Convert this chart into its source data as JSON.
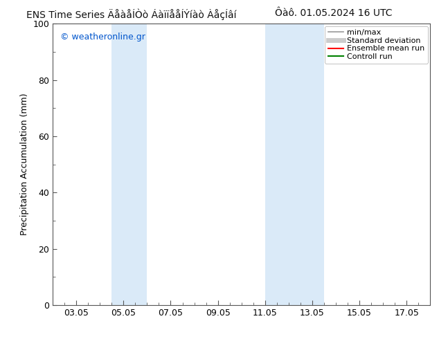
{
  "title_left": "ENS Time Series ÄåàåÍÒò ÁàïïååÍÝíàò ÀåçÍâí",
  "title_right": "Ôàô. 01.05.2024 16 UTC",
  "ylabel": "Precipitation Accumulation (mm)",
  "ylim": [
    0,
    100
  ],
  "yticks": [
    0,
    20,
    40,
    60,
    80,
    100
  ],
  "xtick_dates": [
    "03.05",
    "05.05",
    "07.05",
    "09.05",
    "11.05",
    "13.05",
    "15.05",
    "17.05"
  ],
  "xtick_days": [
    3,
    5,
    7,
    9,
    11,
    13,
    15,
    17
  ],
  "xstart_day": 2,
  "xend_day": 18,
  "watermark": "© weatheronline.gr",
  "watermark_color": "#0055cc",
  "bg_color": "#ffffff",
  "plot_bg_color": "#ffffff",
  "shaded_bands": [
    {
      "xstart_day": 4.5,
      "xend_day": 6.0,
      "color": "#daeaf8"
    },
    {
      "xstart_day": 11.0,
      "xend_day": 13.5,
      "color": "#daeaf8"
    }
  ],
  "legend_entries": [
    {
      "label": "min/max",
      "color": "#999999",
      "lw": 1.2,
      "style": "solid"
    },
    {
      "label": "Standard deviation",
      "color": "#cccccc",
      "lw": 5,
      "style": "solid"
    },
    {
      "label": "Ensemble mean run",
      "color": "#ff0000",
      "lw": 1.5,
      "style": "solid"
    },
    {
      "label": "Controll run",
      "color": "#008000",
      "lw": 1.5,
      "style": "solid"
    }
  ],
  "border_color": "#555555",
  "tick_color": "#555555",
  "font_size": 9,
  "title_font_size": 10,
  "legend_font_size": 8
}
